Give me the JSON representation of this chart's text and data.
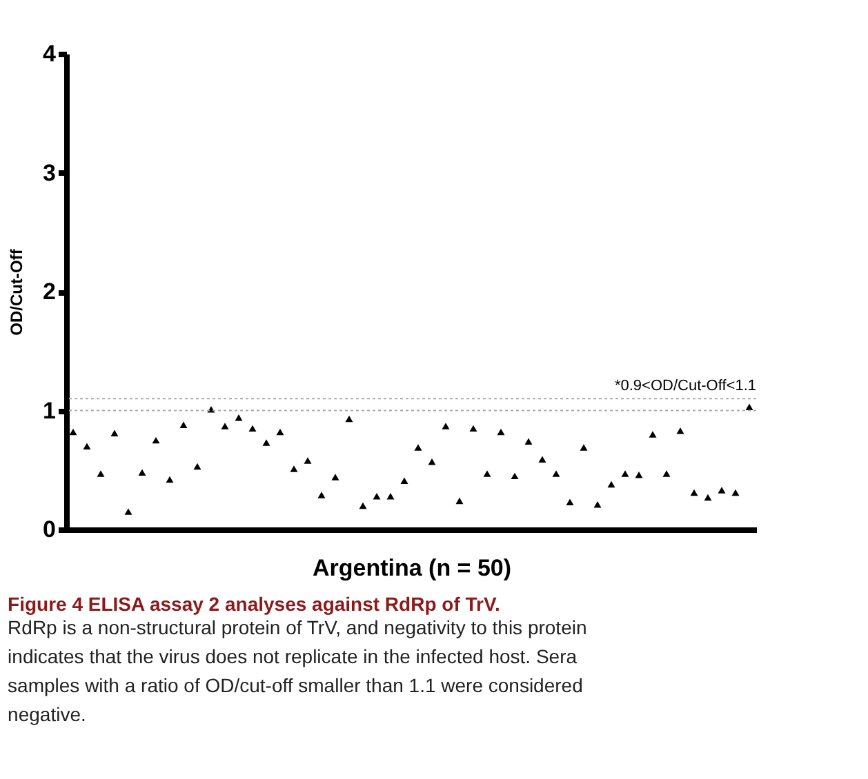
{
  "chart_data": {
    "type": "scatter",
    "xlabel": "Argentina (n = 50)",
    "ylabel": "OD/Cut-Off",
    "categories": [
      null,
      null,
      null,
      null,
      null,
      null,
      null,
      null,
      null,
      null,
      null,
      null,
      null,
      null,
      null,
      null,
      null,
      null,
      null,
      null,
      null,
      null,
      null,
      null,
      null,
      null,
      null,
      null,
      null,
      null,
      null,
      null,
      null,
      null,
      null,
      null,
      null,
      null,
      null,
      null,
      null,
      null,
      null,
      null,
      null,
      null,
      null,
      null,
      null,
      null
    ],
    "series": [
      {
        "color": "#000000",
        "values": [
          0.82,
          0.7,
          0.47,
          0.81,
          0.15,
          0.48,
          0.75,
          0.42,
          0.88,
          0.53,
          1.01,
          0.87,
          0.94,
          0.85,
          0.73,
          0.82,
          0.51,
          0.58,
          0.29,
          0.44,
          0.93,
          0.2,
          0.28,
          0.28,
          0.41,
          0.69,
          0.57,
          0.87,
          0.24,
          0.85,
          0.47,
          0.82,
          0.45,
          0.74,
          0.59,
          0.47,
          0.23,
          0.69,
          0.21,
          0.38,
          0.47,
          0.46,
          0.8,
          0.47,
          0.83,
          0.31,
          0.27,
          0.33,
          0.31,
          1.03
        ]
      }
    ],
    "marker": "triangle",
    "ylim": [
      0,
      4
    ],
    "yticks": [
      0,
      1,
      2,
      3,
      4
    ],
    "grid": false,
    "tick_labels": "y",
    "ref_lines": [
      {
        "axis": "y",
        "value": 1.0,
        "color": "#aaaaaa",
        "line_style": "dotted"
      },
      {
        "axis": "y",
        "value": 1.1,
        "label": "*0.9<OD/Cut-Off<1.1",
        "color": "#aaaaaa",
        "line_style": "dotted"
      }
    ],
    "annotations": [
      "Figure 4 ELISA assay 2 analyses against RdRp of TrV.",
      "RdRp is a non-structural protein of TrV, and negativity to this protein indicates that the virus does not replicate in the infected host. Sera samples with a ratio of OD/cut-off smaller than 1.1 were considered negative."
    ]
  }
}
